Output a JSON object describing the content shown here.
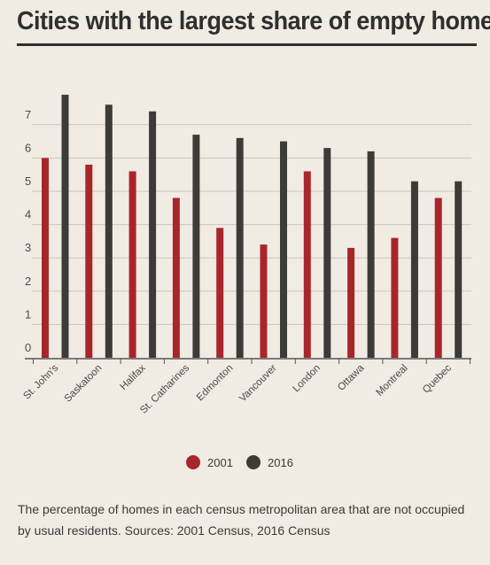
{
  "chart_data": {
    "type": "bar",
    "title": "Cities with the largest share of empty homes",
    "caption": "The percentage of homes in each census metropolitan area that are not occupied by usual residents. Sources: 2001 Census, 2016 Census",
    "categories": [
      "St. John's",
      "Saskatoon",
      "Halifax",
      "St. Catharines",
      "Edmonton",
      "Vancouver",
      "London",
      "Ottawa",
      "Montreal",
      "Quebec"
    ],
    "series": [
      {
        "name": "2001",
        "color": "#a8262a",
        "values": [
          6.0,
          5.8,
          5.6,
          4.8,
          3.9,
          3.4,
          5.6,
          3.3,
          3.6,
          4.8
        ]
      },
      {
        "name": "2016",
        "color": "#3d3b37",
        "values": [
          7.9,
          7.6,
          7.4,
          6.7,
          6.6,
          6.5,
          6.3,
          6.2,
          5.3,
          5.3
        ]
      }
    ],
    "yticks": [
      0,
      1,
      2,
      3,
      4,
      5,
      6,
      7
    ],
    "ylim": [
      0,
      8
    ],
    "grid": true,
    "legend_position": "bottom-center"
  }
}
